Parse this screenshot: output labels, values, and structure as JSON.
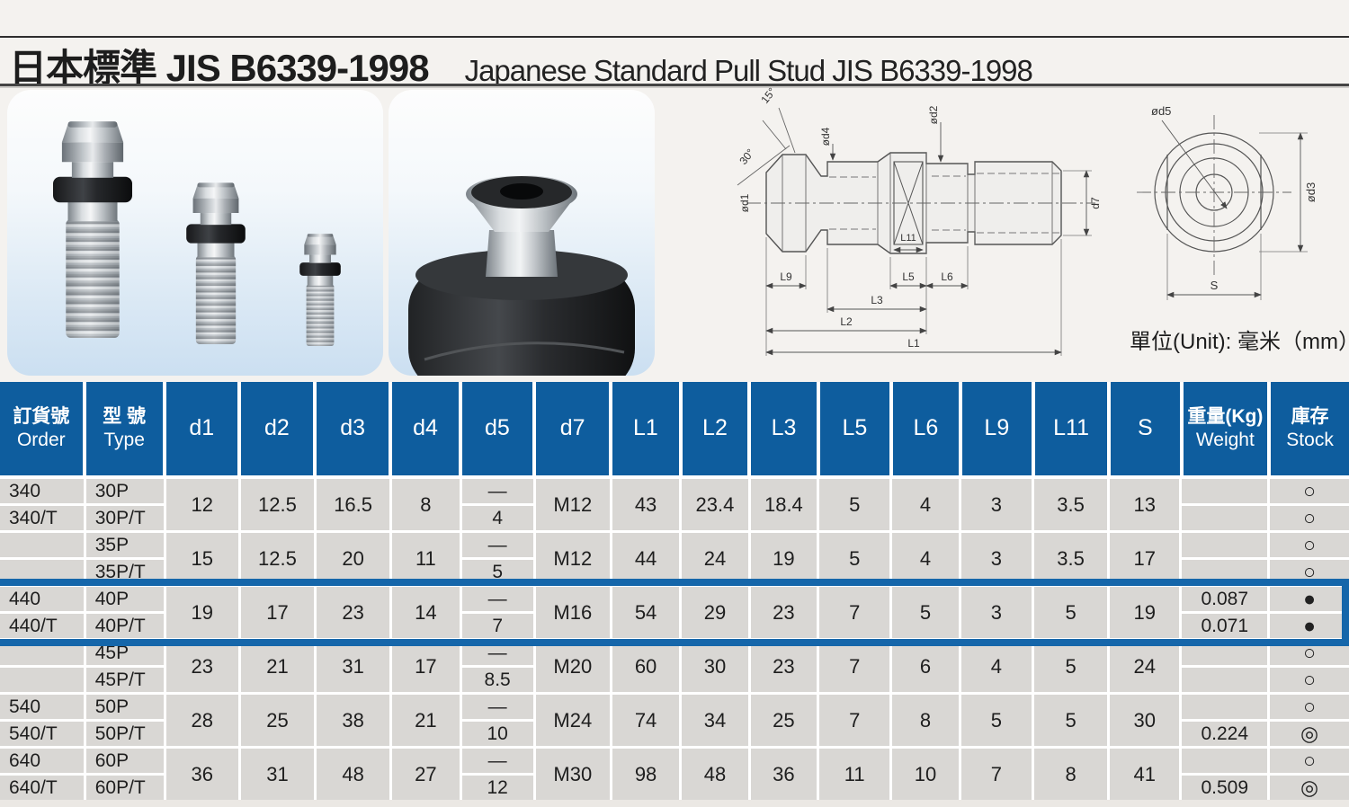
{
  "header": {
    "title_cjk": "日本標準 JIS B6339-1998",
    "title_en": "Japanese Standard Pull Stud JIS B6339-1998"
  },
  "figures": {
    "unit_note": "單位(Unit): 毫米（mm）",
    "side_view_labels": {
      "angle15": "15°",
      "angle30": "30°",
      "d1": "ød1",
      "d4": "ød4",
      "d2": "ød2",
      "d7": "d7",
      "L9": "L9",
      "L11": "L11",
      "L5": "L5",
      "L6": "L6",
      "L3": "L3",
      "L2": "L2",
      "L1": "L1"
    },
    "end_view_labels": {
      "d5": "ød5",
      "d3": "ød3",
      "S": "S"
    }
  },
  "table": {
    "columns": [
      {
        "key": "order",
        "zh": "訂貨號",
        "en": "Order",
        "align": "left"
      },
      {
        "key": "type",
        "zh": "型 號",
        "en": "Type",
        "align": "left"
      },
      {
        "key": "d1",
        "label": "d1"
      },
      {
        "key": "d2",
        "label": "d2"
      },
      {
        "key": "d3",
        "label": "d3"
      },
      {
        "key": "d4",
        "label": "d4"
      },
      {
        "key": "d5",
        "label": "d5"
      },
      {
        "key": "d7",
        "label": "d7"
      },
      {
        "key": "L1",
        "label": "L1"
      },
      {
        "key": "L2",
        "label": "L2"
      },
      {
        "key": "L3",
        "label": "L3"
      },
      {
        "key": "L5",
        "label": "L5"
      },
      {
        "key": "L6",
        "label": "L6"
      },
      {
        "key": "L9",
        "label": "L9"
      },
      {
        "key": "L11",
        "label": "L11"
      },
      {
        "key": "S",
        "label": "S"
      },
      {
        "key": "weight",
        "zh": "重量(Kg)",
        "en": "Weight"
      },
      {
        "key": "stock",
        "zh": "庫存",
        "en": "Stock"
      }
    ],
    "groups": [
      {
        "highlight": false,
        "cells": {
          "order": [
            "340",
            "340/T"
          ],
          "type": [
            "30P",
            "30P/T"
          ],
          "d1": "12",
          "d2": "12.5",
          "d3": "16.5",
          "d4": "8",
          "d5": [
            "—",
            "4"
          ],
          "d7": "M12",
          "L1": "43",
          "L2": "23.4",
          "L3": "18.4",
          "L5": "5",
          "L6": "4",
          "L9": "3",
          "L11": "3.5",
          "S": "13",
          "weight": [
            "",
            ""
          ],
          "stock": [
            "○",
            "○"
          ]
        }
      },
      {
        "highlight": false,
        "cells": {
          "order": [
            "",
            ""
          ],
          "type": [
            "35P",
            "35P/T"
          ],
          "d1": "15",
          "d2": "12.5",
          "d3": "20",
          "d4": "11",
          "d5": [
            "—",
            "5"
          ],
          "d7": "M12",
          "L1": "44",
          "L2": "24",
          "L3": "19",
          "L5": "5",
          "L6": "4",
          "L9": "3",
          "L11": "3.5",
          "S": "17",
          "weight": [
            "",
            ""
          ],
          "stock": [
            "○",
            "○"
          ]
        }
      },
      {
        "highlight": true,
        "cells": {
          "order": [
            "440",
            "440/T"
          ],
          "type": [
            "40P",
            "40P/T"
          ],
          "d1": "19",
          "d2": "17",
          "d3": "23",
          "d4": "14",
          "d5": [
            "—",
            "7"
          ],
          "d7": "M16",
          "L1": "54",
          "L2": "29",
          "L3": "23",
          "L5": "7",
          "L6": "5",
          "L9": "3",
          "L11": "5",
          "S": "19",
          "weight": [
            "0.087",
            "0.071"
          ],
          "stock": [
            "●",
            "●"
          ]
        }
      },
      {
        "highlight": false,
        "cells": {
          "order": [
            "",
            ""
          ],
          "type": [
            "45P",
            "45P/T"
          ],
          "d1": "23",
          "d2": "21",
          "d3": "31",
          "d4": "17",
          "d5": [
            "—",
            "8.5"
          ],
          "d7": "M20",
          "L1": "60",
          "L2": "30",
          "L3": "23",
          "L5": "7",
          "L6": "6",
          "L9": "4",
          "L11": "5",
          "S": "24",
          "weight": [
            "",
            ""
          ],
          "stock": [
            "○",
            "○"
          ]
        }
      },
      {
        "highlight": false,
        "cells": {
          "order": [
            "540",
            "540/T"
          ],
          "type": [
            "50P",
            "50P/T"
          ],
          "d1": "28",
          "d2": "25",
          "d3": "38",
          "d4": "21",
          "d5": [
            "—",
            "10"
          ],
          "d7": "M24",
          "L1": "74",
          "L2": "34",
          "L3": "25",
          "L5": "7",
          "L6": "8",
          "L9": "5",
          "L11": "5",
          "S": "30",
          "weight": [
            "",
            "0.224"
          ],
          "stock": [
            "○",
            "◎"
          ]
        }
      },
      {
        "highlight": false,
        "cells": {
          "order": [
            "640",
            "640/T"
          ],
          "type": [
            "60P",
            "60P/T"
          ],
          "d1": "36",
          "d2": "31",
          "d3": "48",
          "d4": "27",
          "d5": [
            "—",
            "12"
          ],
          "d7": "M30",
          "L1": "98",
          "L2": "48",
          "L3": "36",
          "L5": "11",
          "L6": "10",
          "L9": "7",
          "L11": "8",
          "S": "41",
          "weight": [
            "",
            "0.509"
          ],
          "stock": [
            "○",
            "◎"
          ]
        }
      }
    ]
  }
}
